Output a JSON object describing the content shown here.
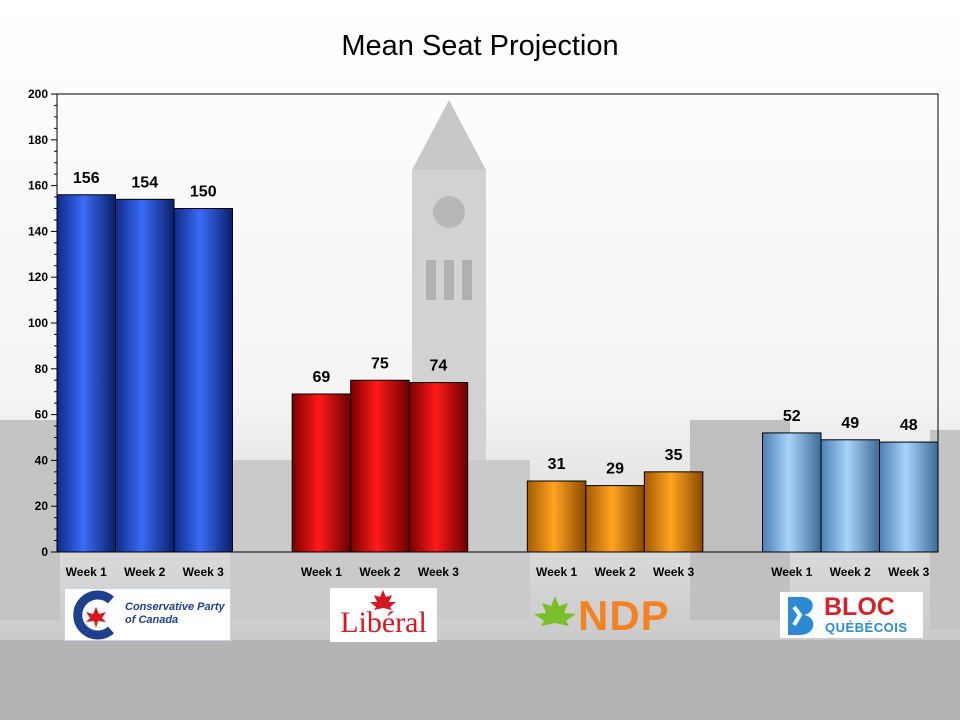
{
  "chart_data": {
    "type": "bar",
    "title": "Mean Seat Projection",
    "xlabel": "",
    "ylabel": "",
    "ylim": [
      0,
      200
    ],
    "yticks": [
      0,
      20,
      40,
      60,
      80,
      100,
      120,
      140,
      160,
      180,
      200
    ],
    "grid": false,
    "legend": "none",
    "groups": [
      {
        "name": "Conservative Party of Canada",
        "color": "#2255e0",
        "categories": [
          "Week 1",
          "Week 2",
          "Week 3"
        ],
        "values": [
          156,
          154,
          150
        ]
      },
      {
        "name": "Libéral",
        "color": "#e00000",
        "categories": [
          "Week 1",
          "Week 2",
          "Week 3"
        ],
        "values": [
          69,
          75,
          74
        ]
      },
      {
        "name": "NDP",
        "color": "#f39200",
        "categories": [
          "Week 1",
          "Week 2",
          "Week 3"
        ],
        "values": [
          31,
          29,
          35
        ]
      },
      {
        "name": "BLOC QUÉBÉCOIS",
        "color": "#8ec2f0",
        "categories": [
          "Week 1",
          "Week 2",
          "Week 3"
        ],
        "values": [
          52,
          49,
          48
        ]
      }
    ]
  },
  "logos": {
    "cpc_line1": "Conservative Party",
    "cpc_line2": "of Canada",
    "liberal": "Libéral",
    "ndp": "NDP",
    "bloc_main": "BLOC",
    "bloc_sub": "QUÉBÉCOIS"
  },
  "colors": {
    "cpc_brand": "#1f3f8f",
    "liberal_brand": "#d51920",
    "ndp_brand": "#f58220",
    "bloc_red": "#d2232a",
    "bloc_blue": "#2b8ad1"
  }
}
